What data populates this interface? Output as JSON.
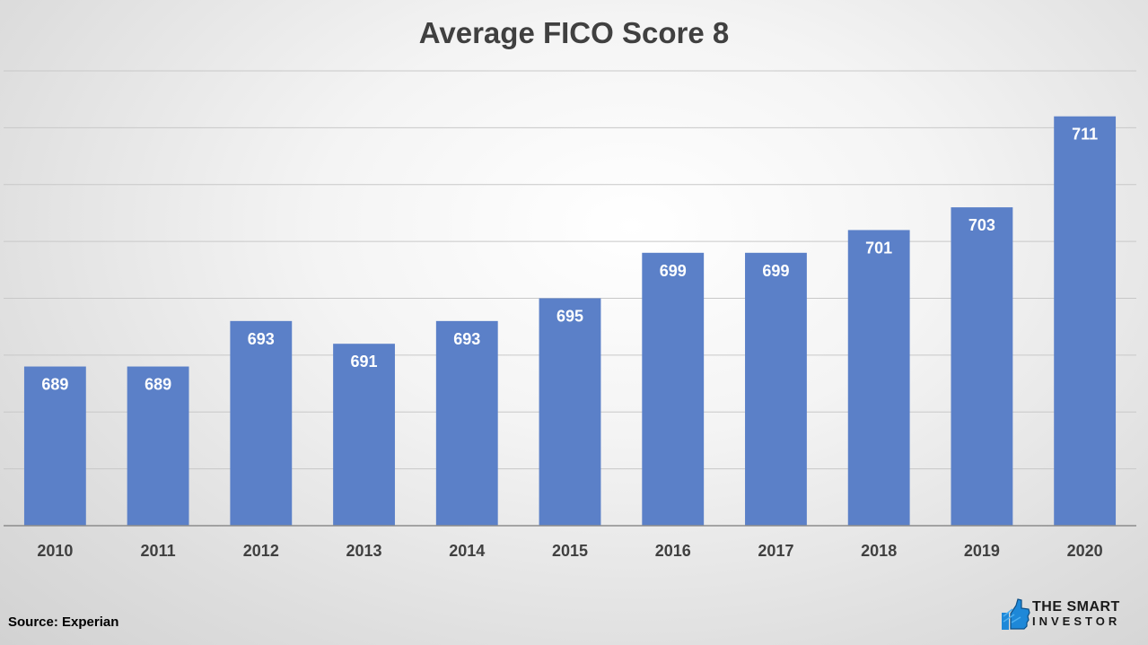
{
  "chart_data": {
    "type": "bar",
    "title": "Average FICO Score 8",
    "categories": [
      "2010",
      "2011",
      "2012",
      "2013",
      "2014",
      "2015",
      "2016",
      "2017",
      "2018",
      "2019",
      "2020"
    ],
    "values": [
      689,
      689,
      693,
      691,
      693,
      695,
      699,
      699,
      701,
      703,
      711
    ],
    "xlabel": "",
    "ylabel": "",
    "ylim": [
      675,
      715
    ],
    "grid": true,
    "legend": "none",
    "data_labels": "inside-end",
    "bar_color": "#5b80c8",
    "label_color": "#ffffff",
    "tick_color": "#404040",
    "grid_color": "#c8c8c8"
  },
  "footer": {
    "source": "Source: Experian"
  },
  "brand": {
    "line1": "THE SMART",
    "line2": "INVESTOR",
    "icon": "thumbs-up-icon",
    "accent": "#1e88d8"
  }
}
